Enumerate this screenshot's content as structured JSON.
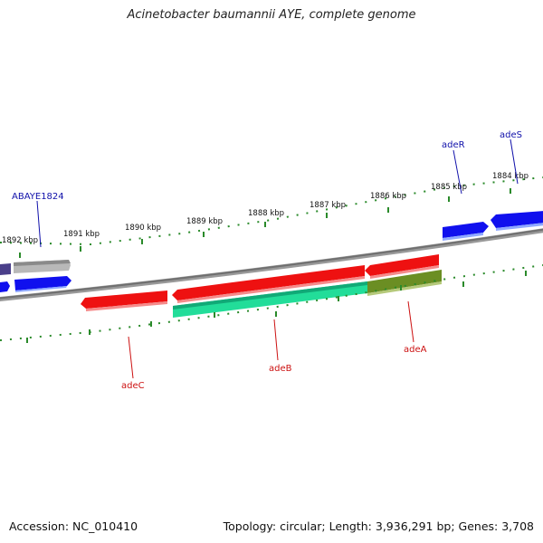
{
  "title": "Acinetobacter baumannii AYE, complete genome",
  "footer": {
    "accession": "Accession: NC_010410",
    "topology": "Topology: circular; Length: 3,936,291 bp; Genes: 3,708"
  },
  "colors": {
    "backbone": "#808080",
    "forward_gene": "#ee1111",
    "reverse_gene": "#1010ee",
    "cds_hit": "#22dd99",
    "cds_hit_dark": "#6b8e23",
    "other_gene": "#b0b0b0",
    "other_gene_dark": "#4a3f8a",
    "tick": "#2a8a2a"
  },
  "ruler_labels": [
    "1892 kbp",
    "1891 kbp",
    "1890 kbp",
    "1889 kbp",
    "1888 kbp",
    "1887 kbp",
    "1886 kbp",
    "1885 kbp",
    "1884 kbp"
  ],
  "gene_labels": {
    "abaye1824": "ABAYE1824",
    "adeR": "adeR",
    "adeS": "adeS",
    "adeC": "adeC",
    "adeB": "adeB",
    "adeA": "adeA"
  }
}
